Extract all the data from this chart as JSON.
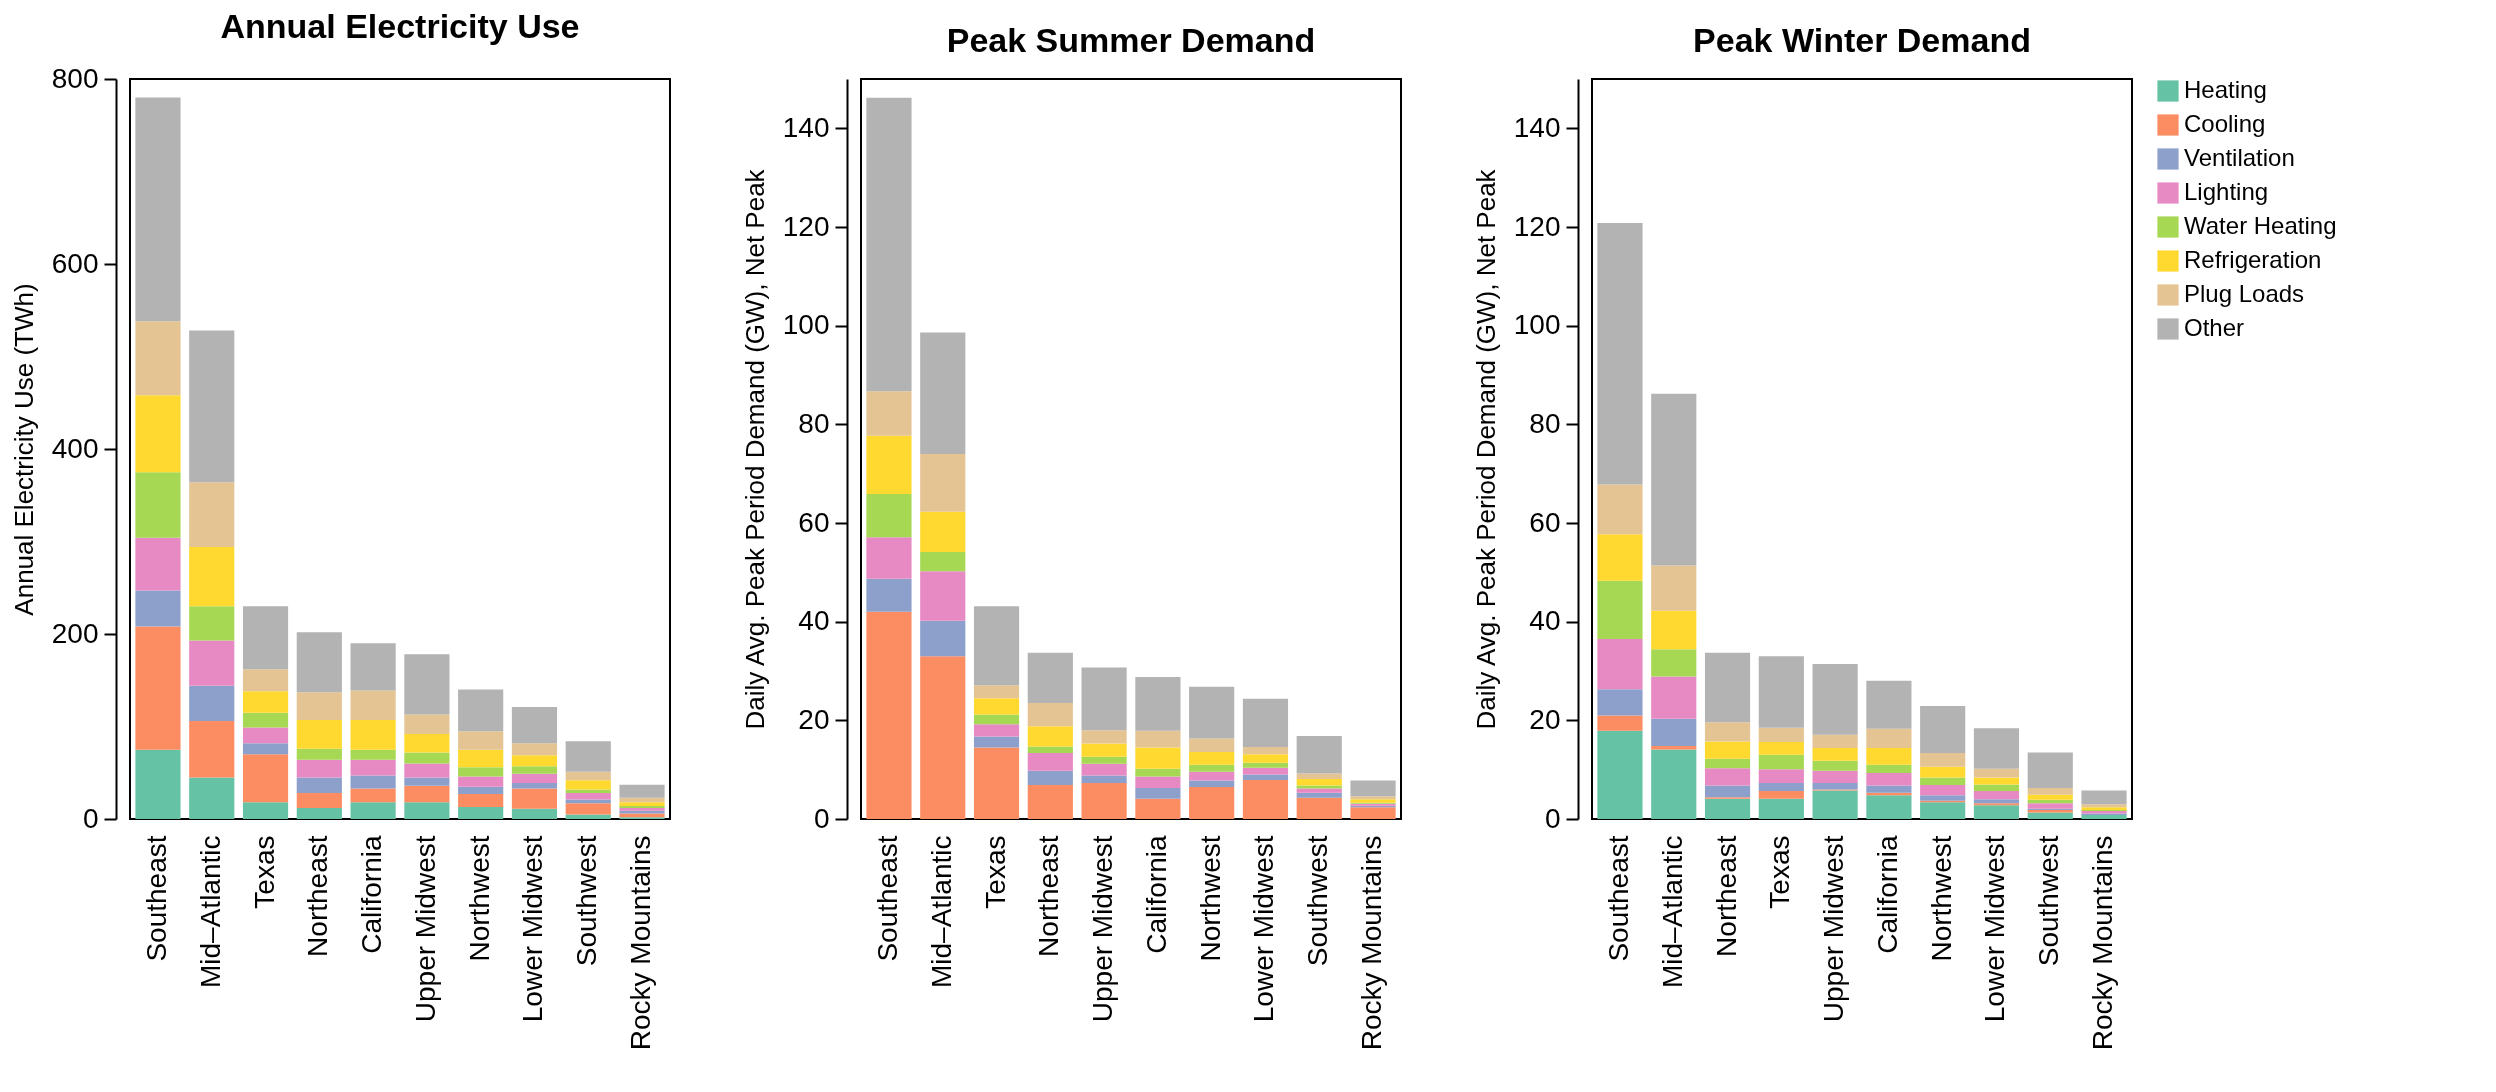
{
  "chart_data": [
    {
      "type": "bar",
      "title": "Annual Electricity Use",
      "ylabel": "Annual Electricity Use (TWh)",
      "stacked": true,
      "legend": false,
      "grid": false,
      "categories": [
        "Southeast",
        "Mid–Atlantic",
        "Texas",
        "Northeast",
        "California",
        "Upper Midwest",
        "Northwest",
        "Lower Midwest",
        "Southwest",
        "Rocky Mountains"
      ],
      "ylim": [
        0,
        800
      ],
      "yticks": [
        0,
        200,
        400,
        600,
        800
      ],
      "series": [
        {
          "color": "#66c2a5",
          "values": [
            75,
            45,
            18,
            12,
            18,
            18,
            13,
            11,
            5,
            2
          ]
        },
        {
          "color": "#fc8d62",
          "values": [
            133,
            61,
            52,
            16,
            15,
            18,
            14,
            22,
            12,
            4
          ]
        },
        {
          "color": "#8da0cb",
          "values": [
            39,
            38,
            12,
            17,
            14,
            9,
            8,
            6,
            4,
            3
          ]
        },
        {
          "color": "#e78ac3",
          "values": [
            57,
            49,
            17,
            19,
            17,
            15,
            11,
            10,
            7,
            3
          ]
        },
        {
          "color": "#a6d854",
          "values": [
            71,
            37,
            16,
            12,
            11,
            12,
            10,
            8,
            4,
            2
          ]
        },
        {
          "color": "#ffd92f",
          "values": [
            83,
            64,
            23,
            31,
            32,
            20,
            19,
            12,
            10,
            4
          ]
        },
        {
          "color": "#e5c494",
          "values": [
            80,
            70,
            24,
            30,
            32,
            21,
            20,
            13,
            9,
            5
          ]
        },
        {
          "color": "#b3b3b3",
          "values": [
            242,
            164,
            68,
            65,
            51,
            65,
            45,
            39,
            33,
            14
          ]
        }
      ]
    },
    {
      "type": "bar",
      "title": "Peak Summer Demand",
      "ylabel": "Daily Avg. Peak Period Demand (GW), Net Peak",
      "stacked": true,
      "legend": false,
      "grid": false,
      "categories": [
        "Southeast",
        "Mid–Atlantic",
        "Texas",
        "Northeast",
        "Upper Midwest",
        "California",
        "Northwest",
        "Lower Midwest",
        "Southwest",
        "Rocky Mountains"
      ],
      "ylim": [
        0,
        150
      ],
      "yticks": [
        0,
        20,
        40,
        60,
        80,
        100,
        120,
        140
      ],
      "series": [
        {
          "color": "#66c2a5",
          "values": [
            0,
            0,
            0,
            0,
            0,
            0,
            0,
            0,
            0,
            0
          ]
        },
        {
          "color": "#fc8d62",
          "values": [
            42,
            33,
            14.5,
            6.9,
            7.3,
            4.1,
            6.5,
            7.9,
            4.3,
            2.4
          ]
        },
        {
          "color": "#8da0cb",
          "values": [
            6.7,
            7.2,
            2.2,
            2.9,
            1.5,
            2.2,
            1.3,
            1.1,
            1,
            0.3
          ]
        },
        {
          "color": "#e78ac3",
          "values": [
            8.4,
            10,
            2.5,
            3.6,
            2.4,
            2.3,
            1.8,
            1.4,
            0.9,
            0.4
          ]
        },
        {
          "color": "#a6d854",
          "values": [
            8.8,
            3.9,
            2,
            1.3,
            1.4,
            1.6,
            1.4,
            1,
            0.6,
            0.2
          ]
        },
        {
          "color": "#ffd92f",
          "values": [
            11.8,
            8.2,
            3.3,
            4.1,
            2.7,
            4.3,
            2.6,
            1.7,
            1.3,
            0.7
          ]
        },
        {
          "color": "#e5c494",
          "values": [
            9,
            11.7,
            2.6,
            4.7,
            2.7,
            3.4,
            2.7,
            1.5,
            1.1,
            0.6
          ]
        },
        {
          "color": "#b3b3b3",
          "values": [
            59.5,
            24.6,
            16,
            10.2,
            12.7,
            10.9,
            10.5,
            9.8,
            7.6,
            3.2
          ]
        }
      ]
    },
    {
      "type": "bar",
      "title": "Peak Winter Demand",
      "ylabel": "Daily Avg. Peak Period Demand (GW), Net Peak",
      "stacked": true,
      "legend": "right",
      "grid": false,
      "categories": [
        "Southeast",
        "Mid–Atlantic",
        "Northeast",
        "Texas",
        "Upper Midwest",
        "California",
        "Northwest",
        "Lower Midwest",
        "Southwest",
        "Rocky Mountains"
      ],
      "ylim": [
        0,
        150
      ],
      "yticks": [
        0,
        20,
        40,
        60,
        80,
        100,
        120,
        140
      ],
      "series": [
        {
          "name": "Heating",
          "color": "#66c2a5",
          "values": [
            17.9,
            14.1,
            4.1,
            4.1,
            5.8,
            4.8,
            3.4,
            2.8,
            1.3,
            0.8
          ]
        },
        {
          "name": "Cooling",
          "color": "#fc8d62",
          "values": [
            3.1,
            0.7,
            0.3,
            1.6,
            0.2,
            0.5,
            0.3,
            0.4,
            0.5,
            null
          ]
        },
        {
          "name": "Ventilation",
          "color": "#8da0cb",
          "values": [
            5.3,
            5.5,
            2.4,
            1.6,
            1.3,
            1.5,
            1.1,
            0.8,
            0.3,
            0.3
          ]
        },
        {
          "name": "Lighting",
          "color": "#e78ac3",
          "values": [
            10.2,
            8.6,
            3.5,
            2.8,
            2.5,
            2.5,
            2.1,
            1.7,
            1.1,
            0.5
          ]
        },
        {
          "name": "Water Heating",
          "color": "#a6d854",
          "values": [
            11.8,
            5.5,
            1.9,
            2.9,
            2,
            1.7,
            1.5,
            1.3,
            0.7,
            0.2
          ]
        },
        {
          "name": "Refrigeration",
          "color": "#ffd92f",
          "values": [
            9.4,
            7.8,
            3.5,
            2.6,
            2.6,
            3.4,
            2.2,
            1.4,
            1,
            0.6
          ]
        },
        {
          "name": "Plug Loads",
          "color": "#e5c494",
          "values": [
            10.1,
            9.2,
            3.9,
            2.9,
            2.7,
            3.9,
            2.8,
            1.8,
            1.4,
            0.6
          ]
        },
        {
          "name": "Other",
          "color": "#b3b3b3",
          "values": [
            53,
            34.8,
            14.1,
            14.5,
            14.3,
            9.7,
            9.5,
            8.2,
            7.2,
            2.8
          ]
        }
      ]
    }
  ]
}
